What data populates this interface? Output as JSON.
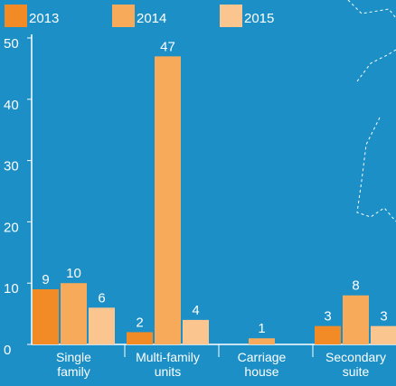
{
  "chart_data": {
    "type": "bar",
    "categories": [
      "Single family",
      "Multi-family units",
      "Carriage house",
      "Secondary suite"
    ],
    "series": [
      {
        "name": "2013",
        "color": "#f28a26",
        "values": [
          9,
          2,
          null,
          3
        ]
      },
      {
        "name": "2014",
        "color": "#f7aa5a",
        "values": [
          10,
          47,
          1,
          8
        ]
      },
      {
        "name": "2015",
        "color": "#fac58f",
        "values": [
          6,
          4,
          null,
          3
        ]
      }
    ],
    "ylim": [
      0,
      50
    ],
    "yticks": [
      0,
      10,
      20,
      30,
      40,
      50
    ],
    "grid": false
  }
}
